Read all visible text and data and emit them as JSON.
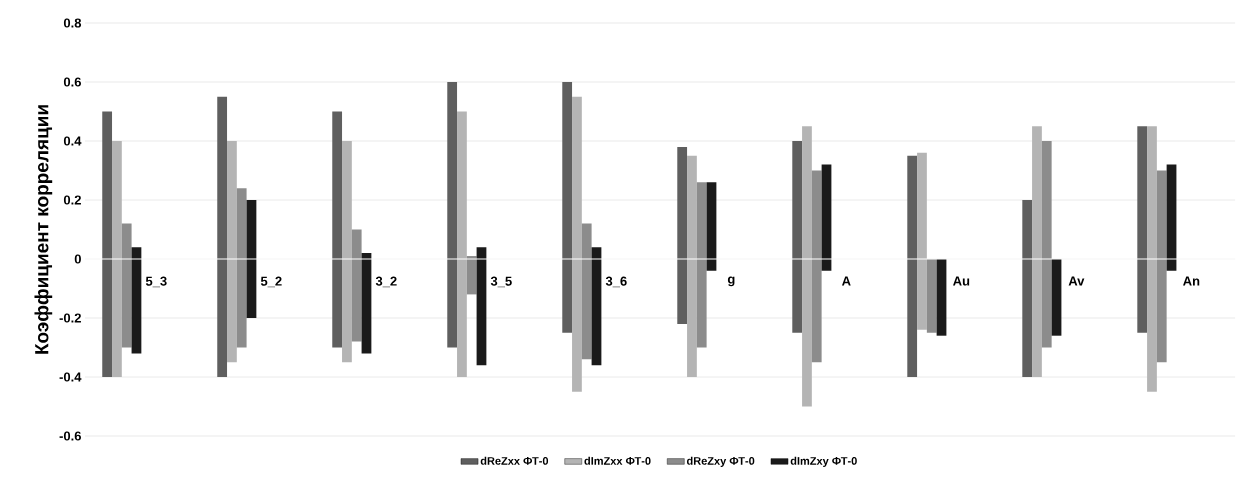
{
  "chart_data": {
    "type": "bar",
    "ylabel": "Коэффициент корреляции",
    "categories": [
      "5_3",
      "5_2",
      "3_2",
      "3_5",
      "3_6",
      "g",
      "A",
      "Au",
      "Av",
      "An"
    ],
    "series": [
      {
        "name": "dReZxx ФТ-0",
        "color": "#5f5f5f",
        "base": [
          -0.4,
          -0.4,
          -0.3,
          -0.3,
          -0.25,
          -0.22,
          -0.25,
          -0.4,
          -0.4,
          -0.25
        ],
        "values": [
          0.9,
          0.95,
          0.8,
          0.9,
          0.85,
          0.6,
          0.65,
          0.75,
          0.6,
          0.7
        ]
      },
      {
        "name": "dImZxx ФТ-0",
        "color": "#b4b4b4",
        "base": [
          -0.4,
          -0.35,
          -0.35,
          -0.4,
          -0.45,
          -0.4,
          -0.5,
          -0.24,
          -0.4,
          -0.45
        ],
        "values": [
          0.8,
          0.75,
          0.75,
          0.9,
          1.0,
          0.75,
          0.95,
          0.6,
          0.85,
          0.9
        ]
      },
      {
        "name": "dReZxy ФТ-0",
        "color": "#8c8c8c",
        "base": [
          -0.3,
          -0.3,
          -0.28,
          -0.12,
          -0.34,
          -0.3,
          -0.35,
          -0.25,
          -0.3,
          -0.35
        ],
        "values": [
          0.42,
          0.54,
          0.38,
          0.13,
          0.46,
          0.56,
          0.65,
          0.25,
          0.7,
          0.65
        ]
      },
      {
        "name": "dImZxy ФТ-0",
        "color": "#1a1a1a",
        "base": [
          -0.32,
          -0.2,
          -0.32,
          -0.36,
          -0.36,
          -0.04,
          -0.04,
          -0.26,
          -0.26,
          -0.04
        ],
        "values": [
          0.36,
          0.4,
          0.34,
          0.4,
          0.4,
          0.3,
          0.36,
          0.26,
          0.26,
          0.36
        ]
      }
    ],
    "ylim": [
      -0.6,
      0.8
    ],
    "yticks": [
      -0.6,
      -0.4,
      -0.2,
      0,
      0.2,
      0.4,
      0.6,
      0.8
    ],
    "grid": "y",
    "legend": "bottom"
  }
}
